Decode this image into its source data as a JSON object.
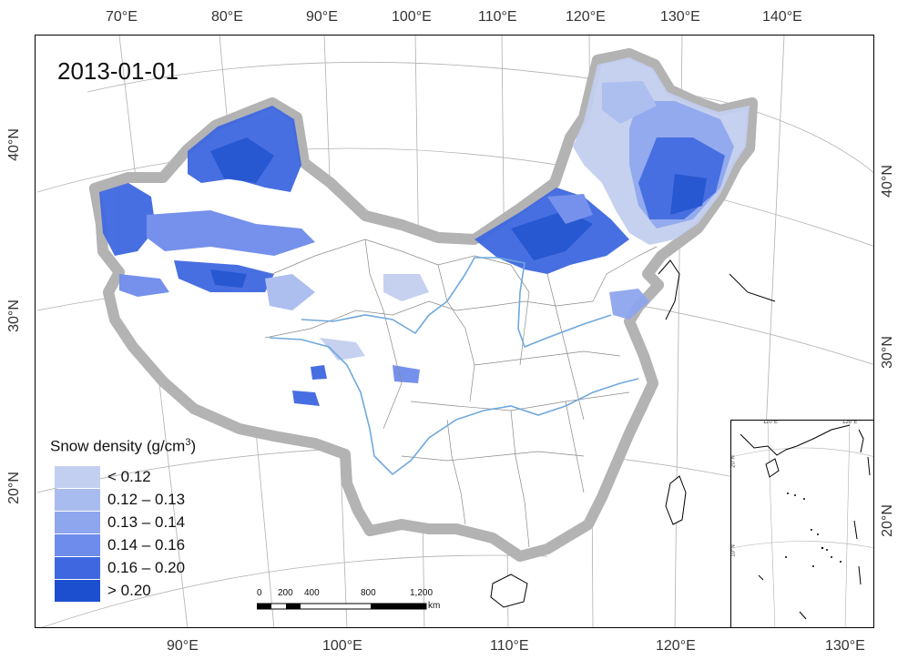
{
  "date_label": "2013-01-01",
  "top_longitude_labels": [
    "70°E",
    "80°E",
    "90°E",
    "100°E",
    "110°E",
    "120°E",
    "130°E",
    "140°E"
  ],
  "bottom_longitude_labels": [
    "90°E",
    "100°E",
    "110°E",
    "120°E",
    "130°E"
  ],
  "left_latitude_labels": [
    "40°N",
    "30°N",
    "20°N"
  ],
  "right_latitude_labels": [
    "40°N",
    "30°N",
    "20°N"
  ],
  "legend": {
    "title": "Snow density (g/cm",
    "title_sup": "3",
    "title_close": ")",
    "classes": [
      {
        "label": "< 0.12",
        "color": "#c3cff0"
      },
      {
        "label": "0.12 – 0.13",
        "color": "#a9bcef"
      },
      {
        "label": "0.13 – 0.14",
        "color": "#8ea6ee"
      },
      {
        "label": "0.14 – 0.16",
        "color": "#6e8cec"
      },
      {
        "label": "0.16 – 0.20",
        "color": "#3f68e0"
      },
      {
        "label": "> 0.20",
        "color": "#1c4fcf"
      }
    ]
  },
  "scale_bar": {
    "labels": [
      "0",
      "200",
      "400",
      "800",
      "1,200"
    ],
    "unit": "km"
  },
  "inset": {
    "top_labels": [
      "110°E",
      "120°E"
    ],
    "left_labels": [
      "20°N",
      "10°N"
    ]
  },
  "colors": {
    "country_border": "#000000",
    "border_halo": "#a9a9a9",
    "province_lines": "#8a8a8a",
    "rivers": "#6fa8dc",
    "graticule": "#b0b0b0"
  }
}
